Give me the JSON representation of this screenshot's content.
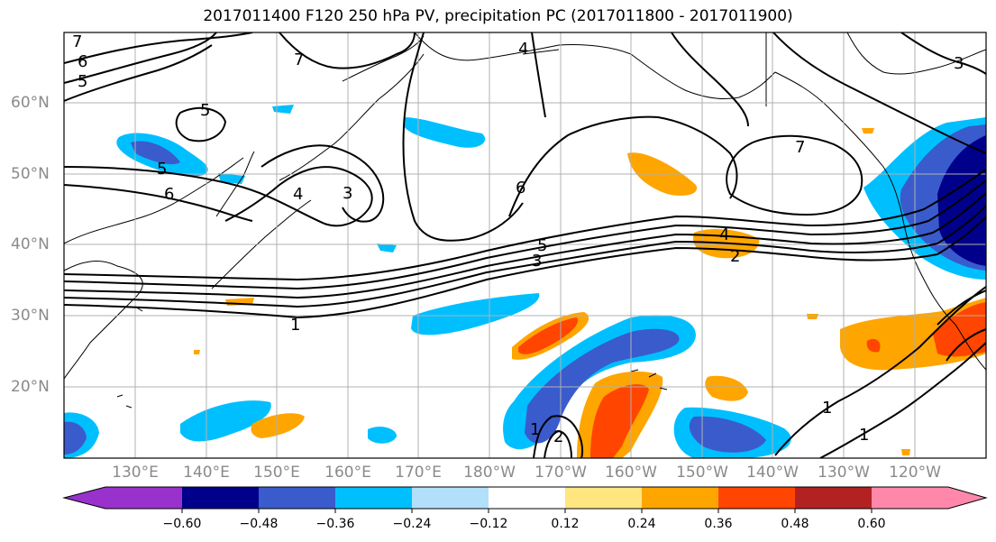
{
  "title": "2017011400 F120 250 hPa PV, precipitation PC (2017011800 - 2017011900)",
  "lat_labels": [
    "60°N",
    "50°N",
    "40°N",
    "30°N",
    "20°N"
  ],
  "lon_labels": [
    "130°E",
    "140°E",
    "150°E",
    "160°E",
    "170°E",
    "180°W",
    "170°W",
    "160°W",
    "150°W",
    "140°W",
    "130°W",
    "120°W"
  ],
  "colorbar": {
    "ticks": [
      "−0.60",
      "−0.48",
      "−0.36",
      "−0.24",
      "−0.12",
      "0.12",
      "0.24",
      "0.36",
      "0.48",
      "0.60"
    ],
    "colors": [
      "#9932cc",
      "#00008b",
      "#3a5bcc",
      "#00bfff",
      "#b2e0fa",
      "#ffffff",
      "#ffe680",
      "#ffa500",
      "#ff4500",
      "#b22222",
      "#ff88aa"
    ]
  },
  "contour_labels": [
    "7",
    "6",
    "5",
    "5",
    "6",
    "4",
    "3",
    "7",
    "6",
    "5",
    "4",
    "3",
    "2",
    "1",
    "5",
    "4",
    "7",
    "3",
    "1",
    "1",
    "1",
    "2"
  ]
}
